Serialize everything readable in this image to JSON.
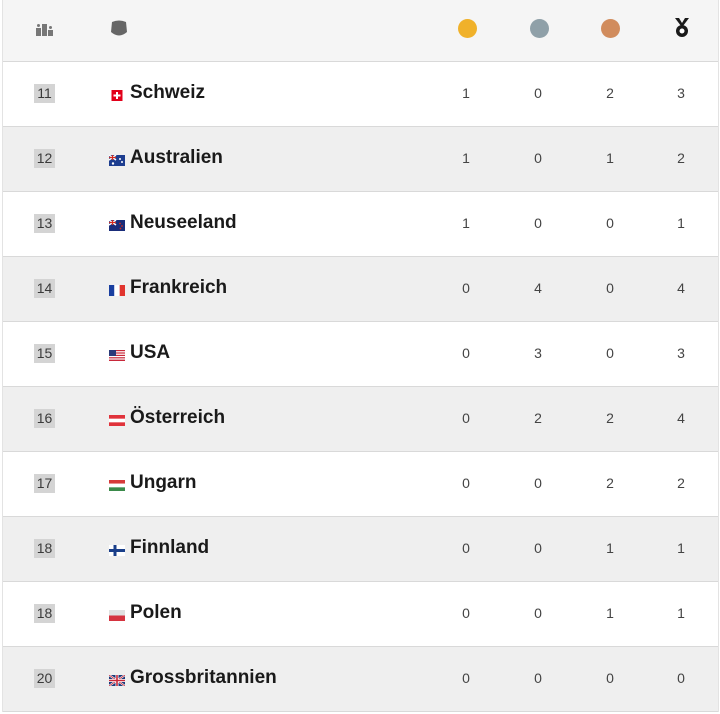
{
  "header": {
    "icons": [
      "podium-icon",
      "country-shield-icon",
      "gold-medal-icon",
      "silver-medal-icon",
      "bronze-medal-icon",
      "total-medal-icon"
    ],
    "colors": {
      "gold": "#f0b12a",
      "silver": "#8fa0a8",
      "bronze": "#d18c5d",
      "total": "#1a1a1a"
    }
  },
  "rows": [
    {
      "rank": "11",
      "country": "Schweiz",
      "flag": "switzerland",
      "gold": "1",
      "silver": "0",
      "bronze": "2",
      "total": "3"
    },
    {
      "rank": "12",
      "country": "Australien",
      "flag": "australia",
      "gold": "1",
      "silver": "0",
      "bronze": "1",
      "total": "2"
    },
    {
      "rank": "13",
      "country": "Neuseeland",
      "flag": "new-zealand",
      "gold": "1",
      "silver": "0",
      "bronze": "0",
      "total": "1"
    },
    {
      "rank": "14",
      "country": "Frankreich",
      "flag": "france",
      "gold": "0",
      "silver": "4",
      "bronze": "0",
      "total": "4"
    },
    {
      "rank": "15",
      "country": "USA",
      "flag": "usa",
      "gold": "0",
      "silver": "3",
      "bronze": "0",
      "total": "3"
    },
    {
      "rank": "16",
      "country": "Österreich",
      "flag": "austria",
      "gold": "0",
      "silver": "2",
      "bronze": "2",
      "total": "4"
    },
    {
      "rank": "17",
      "country": "Ungarn",
      "flag": "hungary",
      "gold": "0",
      "silver": "0",
      "bronze": "2",
      "total": "2"
    },
    {
      "rank": "18",
      "country": "Finnland",
      "flag": "finland",
      "gold": "0",
      "silver": "0",
      "bronze": "1",
      "total": "1"
    },
    {
      "rank": "18",
      "country": "Polen",
      "flag": "poland",
      "gold": "0",
      "silver": "0",
      "bronze": "1",
      "total": "1"
    },
    {
      "rank": "20",
      "country": "Grossbritannien",
      "flag": "united-kingdom",
      "gold": "0",
      "silver": "0",
      "bronze": "0",
      "total": "0"
    }
  ]
}
